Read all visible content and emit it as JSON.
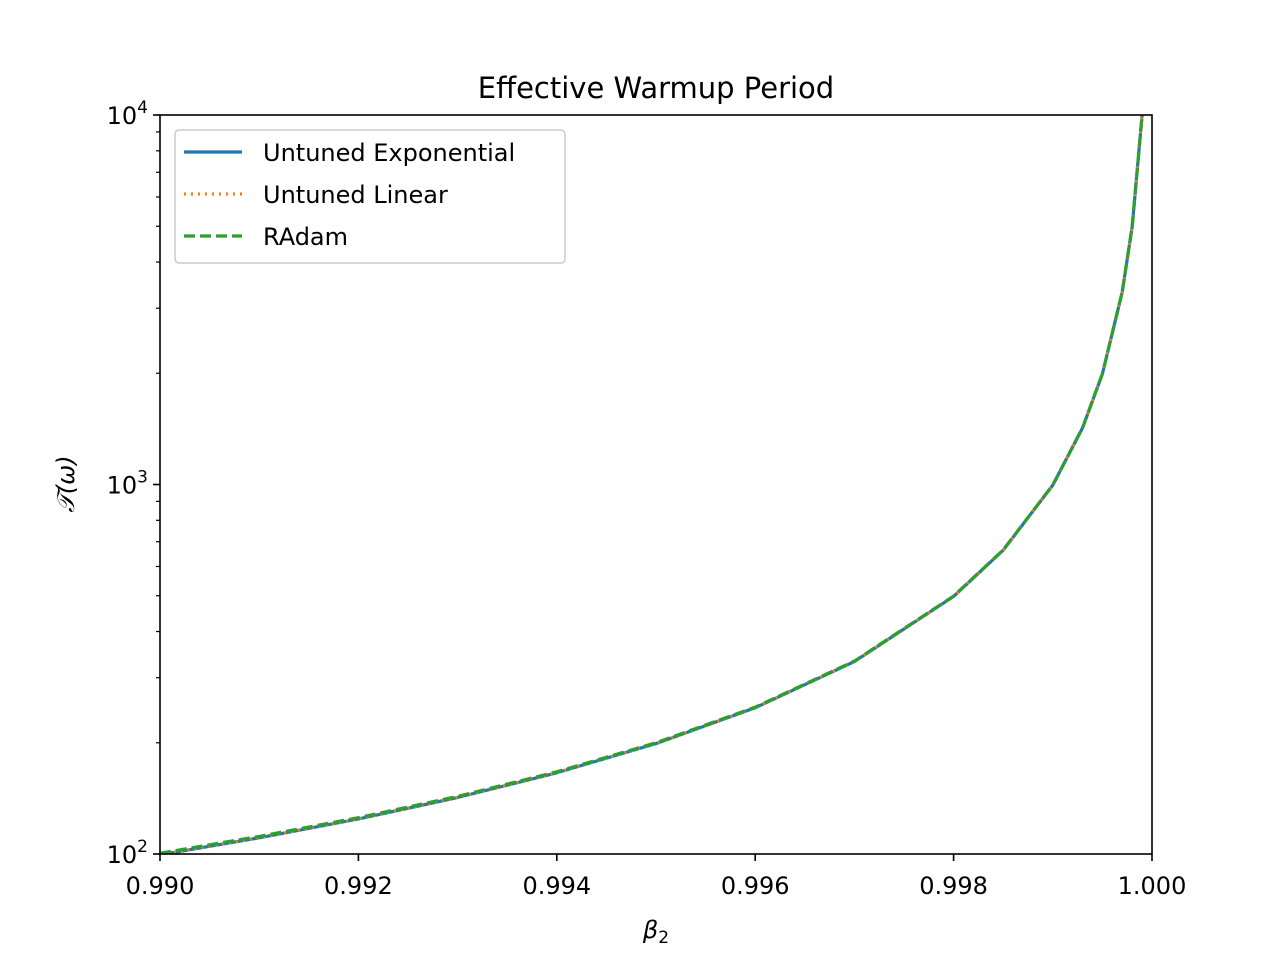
{
  "chart_data": {
    "type": "line",
    "title": "Effective Warmup Period",
    "xlabel": "β",
    "xlabel_subscript": "2",
    "ylabel": "𝒯(ω)",
    "xlim": [
      0.99,
      1.0
    ],
    "ylim": [
      100,
      10000
    ],
    "yscale": "log",
    "grid": false,
    "legend_position": "upper left",
    "x_ticks": [
      "0.990",
      "0.992",
      "0.994",
      "0.996",
      "0.998",
      "1.000"
    ],
    "x_tick_values": [
      0.99,
      0.992,
      0.994,
      0.996,
      0.998,
      1.0
    ],
    "y_ticks": [
      {
        "value": 100,
        "base": "10",
        "exp": "2"
      },
      {
        "value": 1000,
        "base": "10",
        "exp": "3"
      },
      {
        "value": 10000,
        "base": "10",
        "exp": "4"
      }
    ],
    "x": [
      0.99,
      0.991,
      0.992,
      0.993,
      0.994,
      0.995,
      0.996,
      0.997,
      0.998,
      0.9985,
      0.999,
      0.9993,
      0.9995,
      0.9997,
      0.9998,
      0.9999
    ],
    "series": [
      {
        "name": "Untuned Exponential",
        "color": "#1f77b4",
        "style": "solid",
        "values": [
          99.5,
          110.6,
          124.4,
          142.2,
          165.9,
          199.0,
          248.7,
          331.7,
          497.9,
          664.0,
          996.0,
          1422.9,
          1992.0,
          3320.0,
          4980.0,
          9960.0
        ]
      },
      {
        "name": "Untuned Linear",
        "color": "#ff7f0e",
        "style": "dotted",
        "values": [
          99.5,
          110.6,
          124.4,
          142.2,
          165.9,
          199.0,
          248.7,
          331.7,
          497.9,
          664.0,
          996.0,
          1422.9,
          1992.0,
          3320.0,
          4980.0,
          9960.0
        ]
      },
      {
        "name": "RAdam",
        "color": "#2ca02c",
        "style": "dashed",
        "values": [
          100.5,
          111.6,
          125.4,
          143.2,
          166.9,
          200.0,
          249.7,
          332.7,
          498.9,
          665.0,
          997.0,
          1423.9,
          1993.0,
          3321.0,
          4981.0,
          9961.0
        ]
      }
    ]
  }
}
